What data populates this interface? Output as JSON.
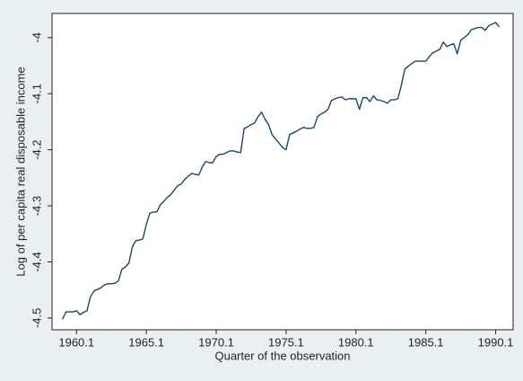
{
  "chart_data": {
    "type": "line",
    "xlabel": "Quarter of the observation",
    "ylabel": "Log of per capita real disposable income",
    "x": [
      -4,
      -3,
      -2,
      -1,
      0,
      1,
      2,
      3,
      4,
      5,
      6,
      7,
      8,
      9,
      10,
      11,
      12,
      13,
      14,
      15,
      16,
      17,
      18,
      19,
      20,
      21,
      22,
      23,
      24,
      25,
      26,
      27,
      28,
      29,
      30,
      31,
      32,
      33,
      34,
      35,
      36,
      37,
      38,
      39,
      40,
      41,
      42,
      43,
      44,
      45,
      46,
      47,
      48,
      49,
      50,
      51,
      52,
      53,
      54,
      55,
      56,
      57,
      58,
      59,
      60,
      61,
      62,
      63,
      64,
      65,
      66,
      67,
      68,
      69,
      70,
      71,
      72,
      73,
      74,
      75,
      76,
      77,
      78,
      79,
      80,
      81,
      82,
      83,
      84,
      85,
      86,
      87,
      88,
      89,
      90,
      91,
      92,
      93,
      94,
      95,
      96,
      97,
      98,
      99,
      100,
      101,
      102,
      103,
      104,
      105,
      106,
      107,
      108,
      109,
      110,
      111,
      112,
      113,
      114,
      115,
      116,
      117,
      118,
      119,
      120,
      121
    ],
    "values": [
      -4.502,
      -4.489,
      -4.489,
      -4.489,
      -4.487,
      -4.494,
      -4.49,
      -4.487,
      -4.462,
      -4.452,
      -4.449,
      -4.446,
      -4.441,
      -4.439,
      -4.439,
      -4.438,
      -4.434,
      -4.413,
      -4.409,
      -4.402,
      -4.373,
      -4.362,
      -4.361,
      -4.359,
      -4.333,
      -4.313,
      -4.311,
      -4.311,
      -4.298,
      -4.292,
      -4.285,
      -4.28,
      -4.272,
      -4.264,
      -4.261,
      -4.253,
      -4.247,
      -4.242,
      -4.244,
      -4.245,
      -4.231,
      -4.221,
      -4.223,
      -4.223,
      -4.212,
      -4.208,
      -4.208,
      -4.205,
      -4.202,
      -4.202,
      -4.204,
      -4.205,
      -4.162,
      -4.159,
      -4.155,
      -4.152,
      -4.141,
      -4.133,
      -4.146,
      -4.155,
      -4.173,
      -4.181,
      -4.188,
      -4.196,
      -4.2,
      -4.173,
      -4.17,
      -4.167,
      -4.163,
      -4.16,
      -4.162,
      -4.162,
      -4.16,
      -4.141,
      -4.136,
      -4.133,
      -4.128,
      -4.112,
      -4.109,
      -4.107,
      -4.106,
      -4.111,
      -4.109,
      -4.109,
      -4.109,
      -4.128,
      -4.107,
      -4.107,
      -4.114,
      -4.104,
      -4.111,
      -4.112,
      -4.114,
      -4.117,
      -4.111,
      -4.111,
      -4.109,
      -4.085,
      -4.056,
      -4.051,
      -4.046,
      -4.042,
      -4.042,
      -4.042,
      -4.042,
      -4.034,
      -4.027,
      -4.024,
      -4.021,
      -4.008,
      -4.016,
      -4.013,
      -4.011,
      -4.029,
      -4.005,
      -4.0,
      -3.995,
      -3.986,
      -3.984,
      -3.982,
      -3.982,
      -3.987,
      -3.979,
      -3.976,
      -3.973,
      -3.981
    ],
    "color": "#1a476f",
    "xlim": [
      -7,
      125
    ],
    "xticks": [
      {
        "value": 0,
        "label": "1960.1"
      },
      {
        "value": 20,
        "label": "1965.1"
      },
      {
        "value": 40,
        "label": "1970.1"
      },
      {
        "value": 60,
        "label": "1975.1"
      },
      {
        "value": 80,
        "label": "1980.1"
      },
      {
        "value": 100,
        "label": "1985.1"
      },
      {
        "value": 120,
        "label": "1990.1"
      }
    ],
    "ylim": [
      -4.521,
      -3.957
    ],
    "yticks": [
      -4.5,
      -4.4,
      -4.3,
      -4.2,
      -4.1,
      -4
    ],
    "grid": false
  }
}
